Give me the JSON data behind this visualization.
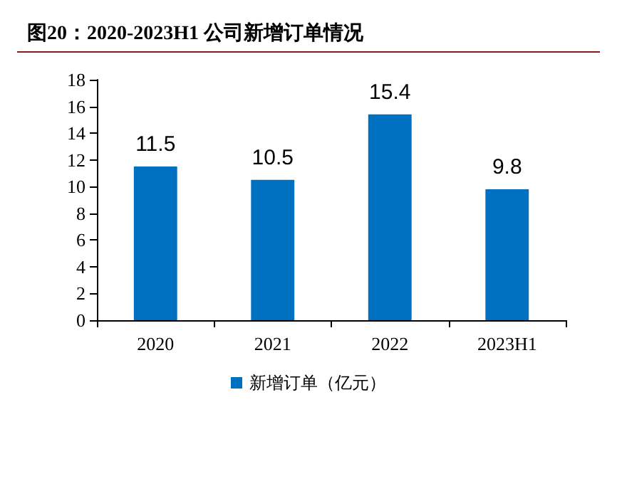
{
  "chart_data": {
    "type": "bar",
    "title": "图20：2020-2023H1 公司新增订单情况",
    "categories": [
      "2020",
      "2021",
      "2022",
      "2023H1"
    ],
    "series": [
      {
        "name": "新增订单（亿元）",
        "color": "#0070c0",
        "values": [
          11.5,
          10.5,
          15.4,
          9.8
        ]
      }
    ],
    "ylim": [
      0,
      18
    ],
    "yticks": [
      0,
      2,
      4,
      6,
      8,
      10,
      12,
      14,
      16,
      18
    ],
    "data_labels": true,
    "grid": false,
    "legend": "bottom"
  }
}
